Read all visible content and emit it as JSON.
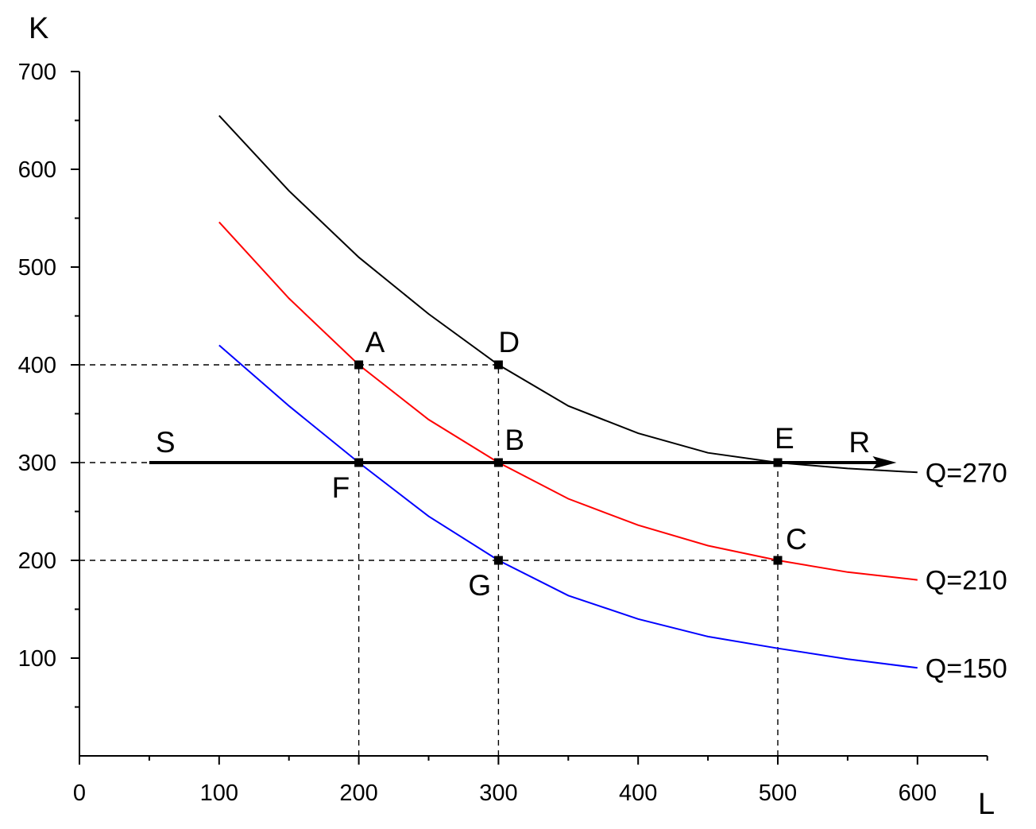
{
  "chart_data": {
    "type": "line",
    "xlabel": "L",
    "ylabel": "K",
    "xlim": [
      0,
      650
    ],
    "ylim": [
      0,
      700
    ],
    "x_ticks": [
      0,
      100,
      200,
      300,
      400,
      500,
      600
    ],
    "y_ticks": [
      100,
      200,
      300,
      400,
      500,
      600,
      700
    ],
    "grid": false,
    "series": [
      {
        "name": "Q=270",
        "color": "#000000",
        "x": [
          100,
          150,
          200,
          250,
          300,
          350,
          400,
          450,
          500,
          550,
          600
        ],
        "y": [
          655,
          578,
          510,
          452,
          400,
          358,
          330,
          310,
          300,
          294,
          290
        ]
      },
      {
        "name": "Q=210",
        "color": "#ff0000",
        "x": [
          100,
          150,
          200,
          250,
          300,
          350,
          400,
          450,
          500,
          550,
          600
        ],
        "y": [
          546,
          468,
          400,
          344,
          300,
          263,
          236,
          215,
          200,
          188,
          180
        ]
      },
      {
        "name": "Q=150",
        "color": "#0000ff",
        "x": [
          100,
          150,
          200,
          250,
          300,
          350,
          400,
          450,
          500,
          550,
          600
        ],
        "y": [
          420,
          358,
          300,
          245,
          200,
          164,
          140,
          122,
          110,
          99,
          90
        ]
      }
    ],
    "points": [
      {
        "label": "A",
        "x": 200,
        "y": 400
      },
      {
        "label": "D",
        "x": 300,
        "y": 400
      },
      {
        "label": "B",
        "x": 300,
        "y": 300
      },
      {
        "label": "E",
        "x": 500,
        "y": 300
      },
      {
        "label": "F",
        "x": 200,
        "y": 300
      },
      {
        "label": "C",
        "x": 500,
        "y": 200
      },
      {
        "label": "G",
        "x": 300,
        "y": 200
      }
    ],
    "arrow": {
      "start_label": "S",
      "end_label": "R",
      "y": 300,
      "x_start": 50,
      "x_end": 585
    },
    "dashed_lines": [
      {
        "axis": "h",
        "y": 400,
        "x_to": 300
      },
      {
        "axis": "h",
        "y": 300,
        "x_to": 50
      },
      {
        "axis": "h",
        "y": 200,
        "x_to": 500
      },
      {
        "axis": "v",
        "x": 200,
        "y_to": 400
      },
      {
        "axis": "v",
        "x": 300,
        "y_to": 400
      },
      {
        "axis": "v",
        "x": 500,
        "y_to": 300
      }
    ]
  }
}
